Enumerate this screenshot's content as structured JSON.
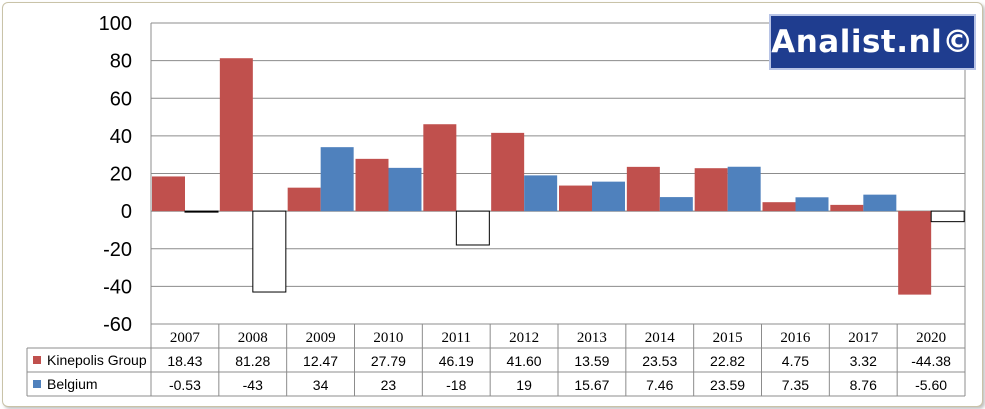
{
  "chart_data": {
    "type": "bar",
    "categories": [
      "2007",
      "2008",
      "2009",
      "2010",
      "2011",
      "2012",
      "2013",
      "2014",
      "2015",
      "2016",
      "2017",
      "2020"
    ],
    "series": [
      {
        "name": "Kinepolis Group",
        "color": "#c0504d",
        "values": [
          18.43,
          81.28,
          12.47,
          27.79,
          46.19,
          41.6,
          13.59,
          23.53,
          22.82,
          4.75,
          3.32,
          -44.38
        ],
        "labels": [
          "18.43",
          "81.28",
          "12.47",
          "27.79",
          "46.19",
          "41.60",
          "13.59",
          "23.53",
          "22.82",
          "4.75",
          "3.32",
          "-44.38"
        ]
      },
      {
        "name": "Belgium",
        "color": "#4f81bd",
        "negative_fill": "#ffffff",
        "negative_stroke": "#000000",
        "values": [
          -0.53,
          -43,
          34,
          23,
          -18,
          19,
          15.67,
          7.46,
          23.59,
          7.35,
          8.76,
          -5.6
        ],
        "labels": [
          "-0.53",
          "-43",
          "34",
          "23",
          "-18",
          "19",
          "15.67",
          "7.46",
          "23.59",
          "7.35",
          "8.76",
          "-5.60"
        ]
      }
    ],
    "ylim": [
      -60,
      100
    ],
    "yticks": [
      "100",
      "80",
      "60",
      "40",
      "20",
      "0",
      "-20",
      "-40",
      "-60"
    ],
    "grid": true,
    "data_table": true
  },
  "logo": {
    "text": "Analist.nl©"
  }
}
